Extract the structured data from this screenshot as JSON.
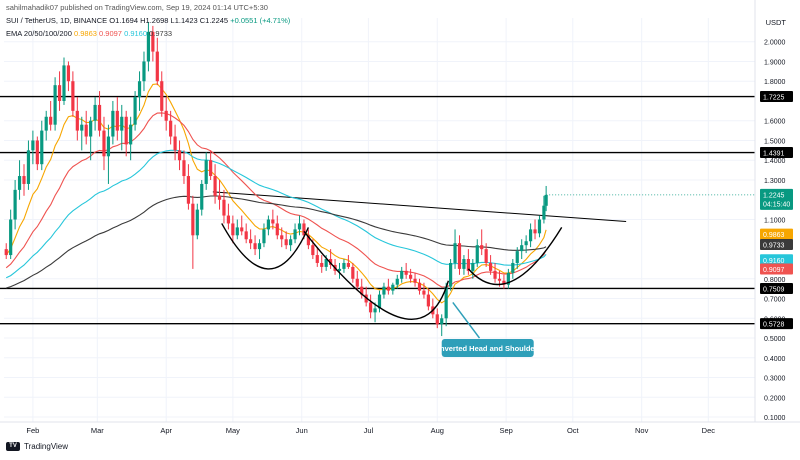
{
  "header": {
    "line1": "sahilmahadik07 published on TradingView.com, Sep 19, 2024 01:14 UTC+5:30",
    "symbol": "SUI / TetherUS, 1D, BINANCE",
    "ohlc": "O1.1694 H1.2698 L1.1423 C1.2245",
    "change": "+0.0551 (+4.71%)",
    "ema_label": "EMA 20/50/100/200",
    "ema_values": [
      "0.9863",
      "0.9097",
      "0.9160",
      "0.9733"
    ]
  },
  "currency": "USDT",
  "brand": "TradingView",
  "colors": {
    "up": "#089981",
    "down": "#f23645",
    "ema20": "#f7a600",
    "ema50": "#ef5350",
    "ema100": "#26c6da",
    "ema200": "#3a3a3a",
    "price_tag": "#089981",
    "annotation": "#2e9fb9"
  },
  "chart_data": {
    "type": "candlestick",
    "ylim": [
      0.075,
      2.12
    ],
    "y_ticks": [
      "2.0000",
      "1.9000",
      "1.8000",
      "1.6000",
      "1.5000",
      "1.4000",
      "1.3000",
      "1.1000",
      "0.8000",
      "0.7000",
      "0.6000",
      "0.5000",
      "0.4000",
      "0.3000",
      "0.2000",
      "0.1000"
    ],
    "x_ticks": [
      "Feb",
      "Mar",
      "Apr",
      "May",
      "Jun",
      "Jul",
      "Aug",
      "Sep",
      "Oct",
      "Nov",
      "Dec"
    ],
    "horizontal_levels": [
      {
        "value": 1.7225,
        "label": "1.7225"
      },
      {
        "value": 1.4391,
        "label": "1.4391"
      },
      {
        "value": 0.7509,
        "label": "0.7509"
      },
      {
        "value": 0.5728,
        "label": "0.5728"
      }
    ],
    "last_price": {
      "value": 1.2245,
      "label": "1.2245",
      "countdown": "04:15:40"
    },
    "ema_tags": [
      {
        "name": "EMA 20",
        "value": 0.9863,
        "label": "0.9863"
      },
      {
        "name": "EMA 200",
        "value": 0.9733,
        "label": "0.9733"
      },
      {
        "name": "EMA 100",
        "value": 0.916,
        "label": "0.9160"
      },
      {
        "name": "EMA 50",
        "value": 0.9097,
        "label": "0.9097"
      }
    ],
    "annotation": "Inverted Head and Shoulder",
    "candles": [
      [
        "2024-01-20",
        0.95,
        0.98,
        0.9,
        0.92
      ],
      [
        "2024-01-22",
        0.92,
        1.15,
        0.9,
        1.1
      ],
      [
        "2024-01-24",
        1.1,
        1.3,
        1.05,
        1.25
      ],
      [
        "2024-01-26",
        1.25,
        1.4,
        1.2,
        1.32
      ],
      [
        "2024-01-28",
        1.32,
        1.38,
        1.22,
        1.28
      ],
      [
        "2024-01-30",
        1.28,
        1.5,
        1.25,
        1.45
      ],
      [
        "2024-02-01",
        1.45,
        1.55,
        1.38,
        1.5
      ],
      [
        "2024-02-03",
        1.5,
        1.52,
        1.35,
        1.38
      ],
      [
        "2024-02-05",
        1.38,
        1.6,
        1.35,
        1.55
      ],
      [
        "2024-02-07",
        1.55,
        1.65,
        1.5,
        1.62
      ],
      [
        "2024-02-09",
        1.62,
        1.7,
        1.55,
        1.58
      ],
      [
        "2024-02-11",
        1.58,
        1.82,
        1.55,
        1.78
      ],
      [
        "2024-02-13",
        1.78,
        1.85,
        1.65,
        1.7
      ],
      [
        "2024-02-15",
        1.7,
        1.92,
        1.68,
        1.88
      ],
      [
        "2024-02-17",
        1.88,
        1.9,
        1.75,
        1.8
      ],
      [
        "2024-02-19",
        1.8,
        1.85,
        1.62,
        1.65
      ],
      [
        "2024-02-21",
        1.65,
        1.72,
        1.5,
        1.55
      ],
      [
        "2024-02-23",
        1.55,
        1.62,
        1.45,
        1.58
      ],
      [
        "2024-02-25",
        1.58,
        1.65,
        1.48,
        1.52
      ],
      [
        "2024-02-27",
        1.52,
        1.62,
        1.4,
        1.6
      ],
      [
        "2024-02-29",
        1.6,
        1.72,
        1.55,
        1.68
      ],
      [
        "2024-03-02",
        1.68,
        1.75,
        1.52,
        1.55
      ],
      [
        "2024-03-04",
        1.55,
        1.62,
        1.35,
        1.42
      ],
      [
        "2024-03-06",
        1.42,
        1.58,
        1.28,
        1.52
      ],
      [
        "2024-03-08",
        1.52,
        1.7,
        1.48,
        1.65
      ],
      [
        "2024-03-10",
        1.65,
        1.72,
        1.5,
        1.55
      ],
      [
        "2024-03-12",
        1.55,
        1.68,
        1.45,
        1.62
      ],
      [
        "2024-03-14",
        1.62,
        1.65,
        1.42,
        1.48
      ],
      [
        "2024-03-16",
        1.48,
        1.62,
        1.4,
        1.58
      ],
      [
        "2024-03-18",
        1.58,
        1.75,
        1.55,
        1.72
      ],
      [
        "2024-03-20",
        1.72,
        1.85,
        1.65,
        1.8
      ],
      [
        "2024-03-22",
        1.8,
        1.95,
        1.75,
        1.9
      ],
      [
        "2024-03-24",
        1.9,
        2.1,
        1.85,
        2.05
      ],
      [
        "2024-03-26",
        2.05,
        2.08,
        1.9,
        1.95
      ],
      [
        "2024-03-28",
        1.95,
        2.02,
        1.78,
        1.8
      ],
      [
        "2024-03-30",
        1.8,
        1.85,
        1.62,
        1.65
      ],
      [
        "2024-04-01",
        1.65,
        1.72,
        1.55,
        1.6
      ],
      [
        "2024-04-03",
        1.6,
        1.65,
        1.48,
        1.52
      ],
      [
        "2024-04-05",
        1.52,
        1.58,
        1.4,
        1.45
      ],
      [
        "2024-04-07",
        1.45,
        1.5,
        1.35,
        1.4
      ],
      [
        "2024-04-09",
        1.4,
        1.45,
        1.28,
        1.32
      ],
      [
        "2024-04-11",
        1.32,
        1.38,
        1.15,
        1.18
      ],
      [
        "2024-04-13",
        1.18,
        1.22,
        0.85,
        1.02
      ],
      [
        "2024-04-15",
        1.02,
        1.18,
        1.0,
        1.15
      ],
      [
        "2024-04-17",
        1.15,
        1.3,
        1.12,
        1.28
      ],
      [
        "2024-04-19",
        1.28,
        1.44,
        1.25,
        1.4
      ],
      [
        "2024-04-21",
        1.4,
        1.45,
        1.3,
        1.32
      ],
      [
        "2024-04-23",
        1.32,
        1.38,
        1.18,
        1.22
      ],
      [
        "2024-04-25",
        1.22,
        1.3,
        1.15,
        1.2
      ],
      [
        "2024-04-27",
        1.2,
        1.25,
        1.08,
        1.12
      ],
      [
        "2024-04-29",
        1.12,
        1.18,
        1.05,
        1.08
      ],
      [
        "2024-05-01",
        1.08,
        1.12,
        0.98,
        1.02
      ],
      [
        "2024-05-03",
        1.02,
        1.1,
        1.0,
        1.06
      ],
      [
        "2024-05-05",
        1.06,
        1.12,
        1.02,
        1.04
      ],
      [
        "2024-05-07",
        1.04,
        1.08,
        0.98,
        1.0
      ],
      [
        "2024-05-09",
        1.0,
        1.05,
        0.95,
        0.98
      ],
      [
        "2024-05-11",
        0.98,
        1.02,
        0.92,
        0.95
      ],
      [
        "2024-05-13",
        0.95,
        1.0,
        0.9,
        0.98
      ],
      [
        "2024-05-15",
        0.98,
        1.08,
        0.96,
        1.05
      ],
      [
        "2024-05-17",
        1.05,
        1.12,
        1.02,
        1.1
      ],
      [
        "2024-05-19",
        1.1,
        1.15,
        1.05,
        1.08
      ],
      [
        "2024-05-21",
        1.08,
        1.12,
        1.0,
        1.02
      ],
      [
        "2024-05-23",
        1.02,
        1.06,
        0.96,
        1.0
      ],
      [
        "2024-05-25",
        1.0,
        1.04,
        0.95,
        0.97
      ],
      [
        "2024-05-27",
        0.97,
        1.02,
        0.94,
        1.0
      ],
      [
        "2024-05-29",
        1.0,
        1.08,
        0.98,
        1.05
      ],
      [
        "2024-05-31",
        1.05,
        1.12,
        1.02,
        1.08
      ],
      [
        "2024-06-02",
        1.08,
        1.1,
        1.0,
        1.02
      ],
      [
        "2024-06-04",
        1.02,
        1.05,
        0.95,
        0.97
      ],
      [
        "2024-06-06",
        0.97,
        1.0,
        0.9,
        0.92
      ],
      [
        "2024-06-08",
        0.92,
        0.96,
        0.86,
        0.88
      ],
      [
        "2024-06-10",
        0.88,
        0.92,
        0.83,
        0.86
      ],
      [
        "2024-06-12",
        0.86,
        0.92,
        0.84,
        0.9
      ],
      [
        "2024-06-14",
        0.9,
        0.95,
        0.85,
        0.87
      ],
      [
        "2024-06-16",
        0.87,
        0.9,
        0.82,
        0.84
      ],
      [
        "2024-06-18",
        0.84,
        0.88,
        0.8,
        0.85
      ],
      [
        "2024-06-20",
        0.85,
        0.9,
        0.83,
        0.88
      ],
      [
        "2024-06-22",
        0.88,
        0.92,
        0.85,
        0.86
      ],
      [
        "2024-06-24",
        0.86,
        0.88,
        0.78,
        0.8
      ],
      [
        "2024-06-26",
        0.8,
        0.84,
        0.74,
        0.76
      ],
      [
        "2024-06-28",
        0.76,
        0.8,
        0.7,
        0.72
      ],
      [
        "2024-06-30",
        0.72,
        0.76,
        0.66,
        0.68
      ],
      [
        "2024-07-02",
        0.68,
        0.72,
        0.6,
        0.63
      ],
      [
        "2024-07-04",
        0.63,
        0.68,
        0.58,
        0.65
      ],
      [
        "2024-07-06",
        0.65,
        0.74,
        0.63,
        0.72
      ],
      [
        "2024-07-08",
        0.72,
        0.78,
        0.7,
        0.76
      ],
      [
        "2024-07-10",
        0.76,
        0.8,
        0.72,
        0.74
      ],
      [
        "2024-07-12",
        0.74,
        0.78,
        0.72,
        0.77
      ],
      [
        "2024-07-14",
        0.77,
        0.82,
        0.75,
        0.8
      ],
      [
        "2024-07-16",
        0.8,
        0.86,
        0.78,
        0.84
      ],
      [
        "2024-07-18",
        0.84,
        0.88,
        0.8,
        0.82
      ],
      [
        "2024-07-20",
        0.82,
        0.85,
        0.78,
        0.8
      ],
      [
        "2024-07-22",
        0.8,
        0.83,
        0.76,
        0.78
      ],
      [
        "2024-07-24",
        0.78,
        0.8,
        0.72,
        0.74
      ],
      [
        "2024-07-26",
        0.74,
        0.78,
        0.7,
        0.72
      ],
      [
        "2024-07-28",
        0.72,
        0.75,
        0.64,
        0.66
      ],
      [
        "2024-07-30",
        0.66,
        0.7,
        0.6,
        0.62
      ],
      [
        "2024-08-01",
        0.62,
        0.65,
        0.55,
        0.57
      ],
      [
        "2024-08-03",
        0.57,
        0.62,
        0.51,
        0.6
      ],
      [
        "2024-08-05",
        0.6,
        0.78,
        0.56,
        0.76
      ],
      [
        "2024-08-07",
        0.76,
        0.9,
        0.74,
        0.88
      ],
      [
        "2024-08-09",
        0.88,
        1.05,
        0.85,
        0.98
      ],
      [
        "2024-08-11",
        0.98,
        1.02,
        0.82,
        0.85
      ],
      [
        "2024-08-13",
        0.85,
        0.92,
        0.82,
        0.9
      ],
      [
        "2024-08-15",
        0.9,
        0.95,
        0.82,
        0.84
      ],
      [
        "2024-08-17",
        0.84,
        0.9,
        0.8,
        0.88
      ],
      [
        "2024-08-19",
        0.88,
        1.0,
        0.86,
        0.97
      ],
      [
        "2024-08-21",
        0.97,
        1.05,
        0.92,
        0.95
      ],
      [
        "2024-08-23",
        0.95,
        0.98,
        0.86,
        0.88
      ],
      [
        "2024-08-25",
        0.88,
        0.92,
        0.82,
        0.84
      ],
      [
        "2024-08-27",
        0.84,
        0.88,
        0.78,
        0.8
      ],
      [
        "2024-08-29",
        0.8,
        0.84,
        0.76,
        0.79
      ],
      [
        "2024-08-31",
        0.79,
        0.82,
        0.75,
        0.77
      ],
      [
        "2024-09-02",
        0.77,
        0.85,
        0.75,
        0.83
      ],
      [
        "2024-09-04",
        0.83,
        0.9,
        0.8,
        0.88
      ],
      [
        "2024-09-06",
        0.88,
        0.96,
        0.85,
        0.94
      ],
      [
        "2024-09-08",
        0.94,
        1.0,
        0.9,
        0.97
      ],
      [
        "2024-09-10",
        0.97,
        1.02,
        0.93,
        0.99
      ],
      [
        "2024-09-12",
        0.99,
        1.08,
        0.96,
        1.05
      ],
      [
        "2024-09-14",
        1.05,
        1.1,
        1.0,
        1.03
      ],
      [
        "2024-09-16",
        1.03,
        1.12,
        1.01,
        1.1
      ],
      [
        "2024-09-18",
        1.1,
        1.22,
        1.08,
        1.17
      ],
      [
        "2024-09-19",
        1.1694,
        1.2698,
        1.1423,
        1.2245
      ]
    ]
  }
}
